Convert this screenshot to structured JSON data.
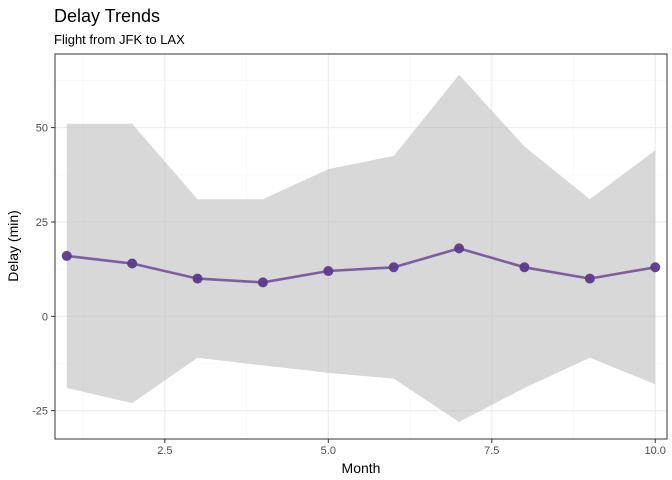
{
  "chart_data": {
    "type": "line",
    "title": "Delay Trends",
    "subtitle": "Flight from JFK to LAX",
    "xlabel": "Month",
    "ylabel": "Delay (min)",
    "xlim": [
      0.82,
      10.18
    ],
    "ylim": [
      -32.5,
      69.5
    ],
    "xticks": [
      2.5,
      5.0,
      7.5,
      10.0
    ],
    "xtick_labels": [
      "2.5",
      "5.0",
      "7.5",
      "10.0"
    ],
    "yticks": [
      -25,
      0,
      25,
      50
    ],
    "ytick_labels": [
      "-25",
      "0",
      "25",
      "50"
    ],
    "grid": true,
    "legend": "none",
    "series": [
      {
        "x": [
          1,
          2,
          3,
          4,
          5,
          6,
          7,
          8,
          9,
          10
        ],
        "values": [
          16,
          14,
          10,
          9,
          12,
          13,
          18,
          13,
          10,
          13
        ],
        "lower": [
          -19,
          -23,
          -11,
          -13,
          -15,
          -16.5,
          -28,
          -19,
          -11,
          -18
        ],
        "upper": [
          51,
          51,
          31,
          31,
          39,
          42.5,
          64,
          45,
          31,
          44
        ],
        "color": "#5b3a8b"
      }
    ],
    "ribbon_color": "#bebebe",
    "grid_major_color": "#ebebeb",
    "grid_minor_color": "#f5f5f5",
    "panel_border_color": "#333333"
  }
}
